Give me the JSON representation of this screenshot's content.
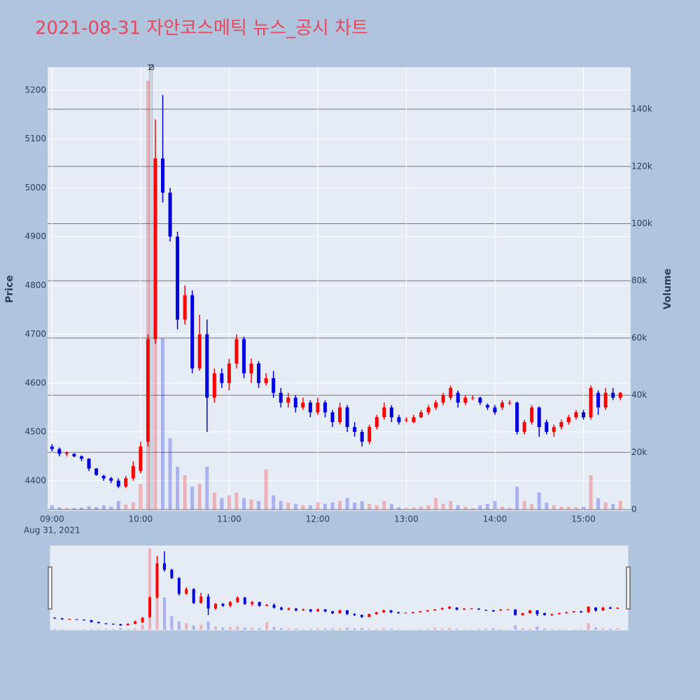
{
  "chart_data": {
    "type": "candlestick",
    "title": "2021-08-31 자안코스메틱 뉴스_공시 차트",
    "yaxis_title": "Price",
    "y2axis_title": "Volume",
    "x": [
      "09:00",
      "09:05",
      "09:10",
      "09:15",
      "09:20",
      "09:25",
      "09:30",
      "09:35",
      "09:40",
      "09:45",
      "09:50",
      "09:55",
      "10:00",
      "10:05",
      "10:10",
      "10:15",
      "10:20",
      "10:25",
      "10:30",
      "10:35",
      "10:40",
      "10:45",
      "10:50",
      "10:55",
      "11:00",
      "11:05",
      "11:10",
      "11:15",
      "11:20",
      "11:25",
      "11:30",
      "11:35",
      "11:40",
      "11:45",
      "11:50",
      "11:55",
      "12:00",
      "12:05",
      "12:10",
      "12:15",
      "12:20",
      "12:25",
      "12:30",
      "12:35",
      "12:40",
      "12:45",
      "12:50",
      "12:55",
      "13:00",
      "13:05",
      "13:10",
      "13:15",
      "13:20",
      "13:25",
      "13:30",
      "13:35",
      "13:40",
      "13:45",
      "13:50",
      "13:55",
      "14:00",
      "14:05",
      "14:10",
      "14:15",
      "14:20",
      "14:25",
      "14:30",
      "14:35",
      "14:40",
      "14:45",
      "14:50",
      "14:55",
      "15:00",
      "15:05",
      "15:10",
      "15:15",
      "15:20",
      "15:25"
    ],
    "open": [
      4470,
      4465,
      4455,
      4455,
      4450,
      4445,
      4425,
      4410,
      4405,
      4400,
      4388,
      4405,
      4420,
      4480,
      4690,
      5060,
      4990,
      4900,
      4730,
      4780,
      4630,
      4700,
      4570,
      4620,
      4600,
      4640,
      4690,
      4620,
      4640,
      4600,
      4610,
      4580,
      4560,
      4570,
      4550,
      4560,
      4540,
      4560,
      4540,
      4520,
      4550,
      4510,
      4500,
      4480,
      4510,
      4530,
      4550,
      4530,
      4525,
      4520,
      4530,
      4540,
      4550,
      4560,
      4570,
      4580,
      4560,
      4570,
      4570,
      4555,
      4550,
      4550,
      4560,
      4560,
      4500,
      4520,
      4550,
      4520,
      4500,
      4510,
      4520,
      4530,
      4540,
      4530,
      4580,
      4550,
      4580,
      4570
    ],
    "high": [
      4475,
      4468,
      4460,
      4456,
      4452,
      4446,
      4426,
      4412,
      4408,
      4405,
      4410,
      4440,
      4480,
      4700,
      5140,
      5190,
      5000,
      4910,
      4800,
      4790,
      4740,
      4730,
      4630,
      4630,
      4650,
      4700,
      4695,
      4650,
      4645,
      4620,
      4625,
      4590,
      4580,
      4575,
      4570,
      4565,
      4570,
      4565,
      4545,
      4560,
      4555,
      4520,
      4505,
      4515,
      4535,
      4560,
      4555,
      4535,
      4530,
      4535,
      4545,
      4555,
      4565,
      4580,
      4595,
      4585,
      4575,
      4575,
      4572,
      4558,
      4555,
      4565,
      4565,
      4562,
      4525,
      4555,
      4552,
      4525,
      4515,
      4525,
      4535,
      4545,
      4545,
      4595,
      4585,
      4590,
      4590,
      4582
    ],
    "low": [
      4460,
      4450,
      4450,
      4448,
      4440,
      4420,
      4410,
      4400,
      4395,
      4385,
      4385,
      4400,
      4415,
      4470,
      4680,
      4970,
      4890,
      4710,
      4720,
      4620,
      4625,
      4500,
      4560,
      4590,
      4585,
      4630,
      4610,
      4600,
      4590,
      4595,
      4570,
      4550,
      4550,
      4540,
      4545,
      4530,
      4535,
      4530,
      4510,
      4515,
      4500,
      4490,
      4470,
      4475,
      4505,
      4525,
      4520,
      4515,
      4520,
      4518,
      4528,
      4535,
      4545,
      4555,
      4565,
      4550,
      4555,
      4565,
      4555,
      4545,
      4535,
      4545,
      4555,
      4495,
      4495,
      4515,
      4490,
      4495,
      4490,
      4505,
      4515,
      4525,
      4525,
      4525,
      4535,
      4545,
      4565,
      4565
    ],
    "close": [
      4465,
      4455,
      4458,
      4450,
      4445,
      4425,
      4412,
      4405,
      4400,
      4388,
      4405,
      4430,
      4470,
      4690,
      5060,
      4990,
      4900,
      4730,
      4780,
      4630,
      4700,
      4570,
      4620,
      4600,
      4640,
      4690,
      4620,
      4640,
      4600,
      4610,
      4580,
      4560,
      4570,
      4550,
      4560,
      4540,
      4560,
      4540,
      4520,
      4550,
      4510,
      4500,
      4480,
      4510,
      4530,
      4550,
      4530,
      4520,
      4525,
      4530,
      4540,
      4550,
      4560,
      4575,
      4590,
      4560,
      4570,
      4570,
      4560,
      4550,
      4540,
      4560,
      4560,
      4500,
      4520,
      4550,
      4510,
      4500,
      4510,
      4520,
      4530,
      4540,
      4530,
      4590,
      4550,
      4580,
      4570,
      4580
    ],
    "volume": [
      1500,
      800,
      600,
      500,
      700,
      1200,
      900,
      1500,
      1000,
      3000,
      1800,
      2500,
      9000,
      150000,
      120000,
      60000,
      25000,
      15000,
      12000,
      8000,
      9000,
      15000,
      6000,
      4000,
      5000,
      6000,
      4000,
      3500,
      3000,
      14000,
      5000,
      3000,
      2500,
      2000,
      1500,
      1500,
      2500,
      2000,
      2500,
      3000,
      4000,
      2500,
      3000,
      2000,
      1500,
      3000,
      2000,
      800,
      600,
      700,
      1000,
      1500,
      4000,
      2000,
      3000,
      1500,
      1000,
      500,
      1500,
      2000,
      3000,
      1000,
      600,
      8000,
      3000,
      2000,
      6000,
      2500,
      1500,
      1000,
      1000,
      800,
      1000,
      12000,
      4000,
      2500,
      2000,
      3000
    ],
    "increasing_color": "#ff0000",
    "decreasing_color": "#0000dd",
    "xlim": [
      "08:57",
      "15:32"
    ],
    "xticks": [
      "09:00",
      "10:00",
      "11:00",
      "12:00",
      "13:00",
      "14:00",
      "15:00"
    ],
    "x_date_label": "Aug 31, 2021",
    "ylim": [
      4338,
      5247
    ],
    "yticks": [
      4400,
      4500,
      4600,
      4700,
      4800,
      4900,
      5000,
      5100,
      5200
    ],
    "y2lim": [
      -490,
      154700
    ],
    "y2ticks": [
      0,
      {
        "value": 20000,
        "label": "20k"
      },
      {
        "value": 40000,
        "label": "40k"
      },
      {
        "value": 60000,
        "label": "60k"
      },
      {
        "value": 80000,
        "label": "80k"
      },
      {
        "value": 100000,
        "label": "100k"
      },
      {
        "value": 120000,
        "label": "120k"
      },
      {
        "value": 140000,
        "label": "140k"
      }
    ],
    "annotations": [
      {
        "x": "10:06",
        "text": "1"
      },
      {
        "x": "10:07",
        "text": "2"
      },
      {
        "x": "10:08",
        "text": "3"
      }
    ],
    "grid": true,
    "rangeslider": true
  }
}
